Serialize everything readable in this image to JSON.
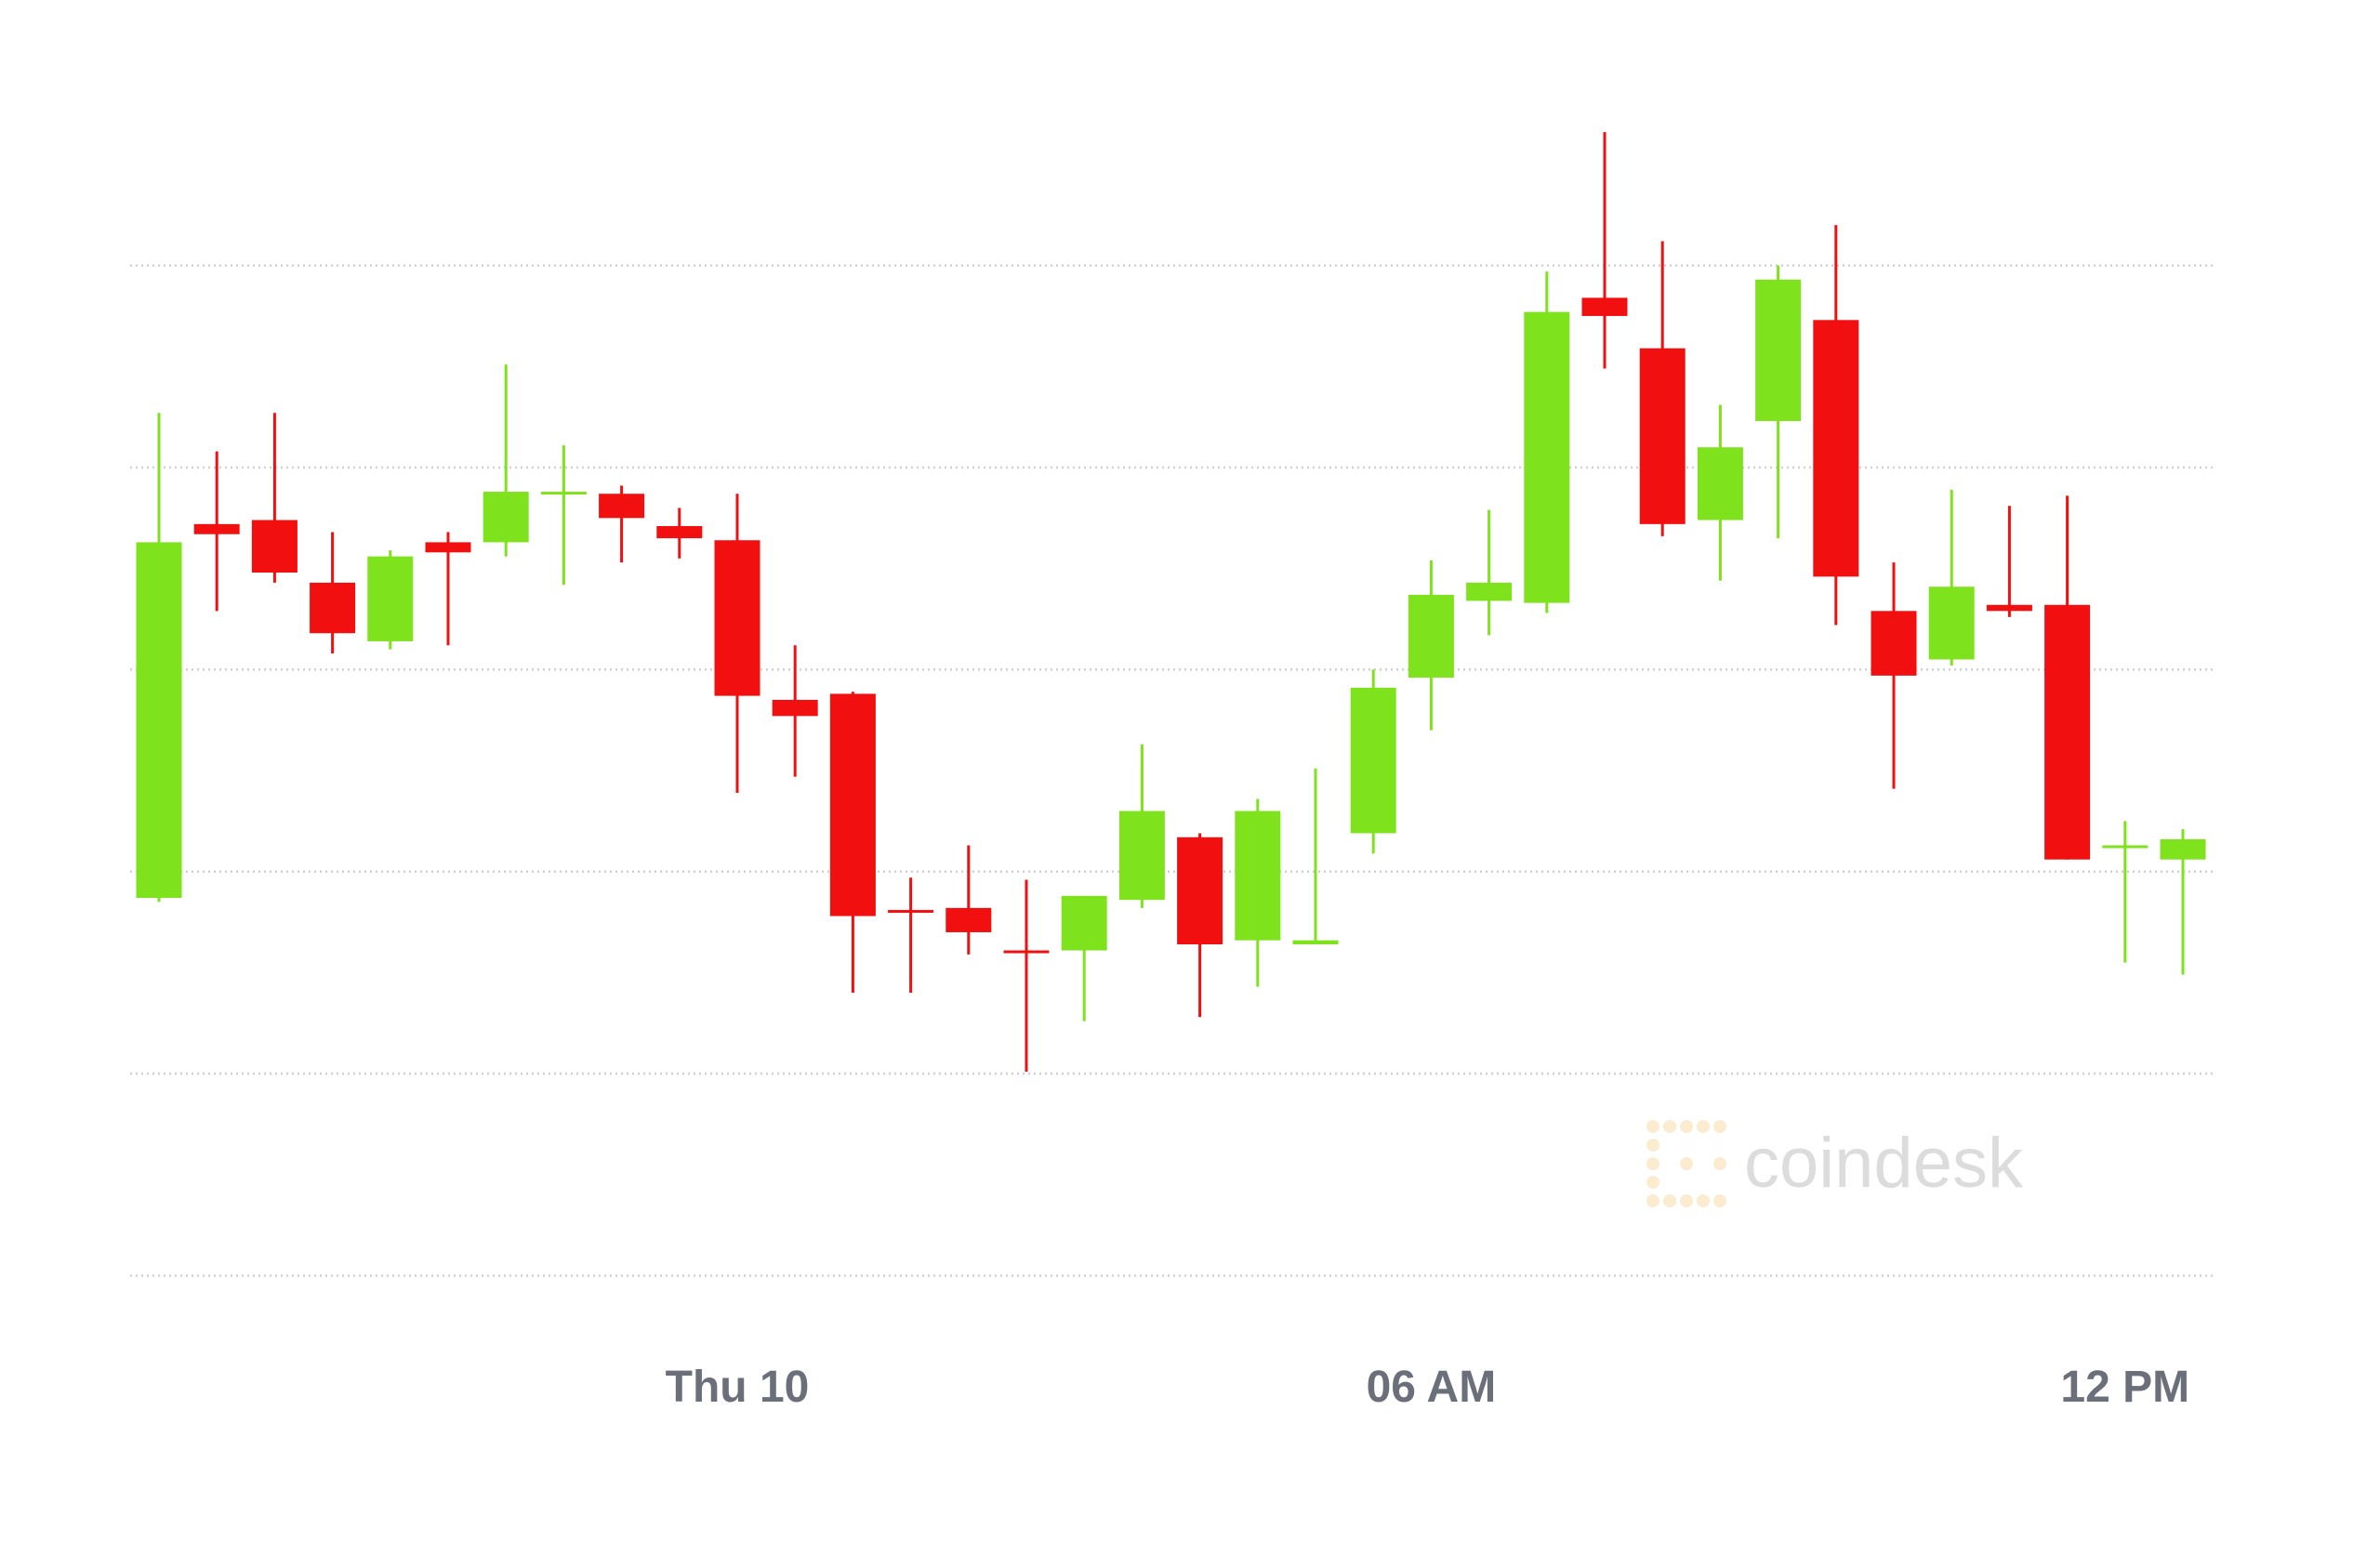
{
  "chart_data": {
    "type": "candlestick",
    "categories": [
      null,
      null,
      null,
      null,
      null,
      null,
      null,
      null,
      null,
      null,
      "Thu 10",
      null,
      null,
      null,
      null,
      null,
      null,
      null,
      null,
      null,
      null,
      null,
      "06 AM",
      null,
      null,
      null,
      null,
      null,
      null,
      null,
      null,
      null,
      null,
      null,
      "12 PM",
      null
    ],
    "open": [
      1.87,
      3.72,
      3.74,
      3.43,
      3.14,
      3.63,
      3.63,
      3.87,
      3.87,
      3.71,
      3.64,
      2.85,
      2.88,
      1.81,
      1.82,
      1.61,
      1.61,
      1.86,
      2.17,
      1.66,
      1.64,
      2.19,
      2.96,
      3.34,
      3.33,
      4.84,
      4.59,
      3.74,
      4.23,
      4.73,
      3.29,
      3.05,
      3.32,
      3.32,
      2.13,
      2.06
    ],
    "high": [
      4.27,
      4.08,
      4.27,
      3.68,
      3.59,
      3.68,
      4.51,
      4.11,
      3.91,
      3.8,
      3.87,
      3.12,
      2.89,
      1.97,
      2.13,
      1.96,
      1.88,
      2.63,
      2.19,
      2.36,
      2.51,
      3.0,
      3.54,
      3.79,
      4.97,
      5.66,
      5.12,
      4.31,
      5.0,
      5.2,
      3.53,
      3.89,
      3.81,
      3.86,
      2.25,
      2.21
    ],
    "low": [
      1.85,
      3.29,
      3.43,
      3.08,
      3.1,
      3.12,
      3.56,
      3.42,
      3.53,
      3.55,
      2.39,
      2.47,
      1.4,
      1.4,
      1.59,
      1.01,
      1.26,
      1.82,
      1.28,
      1.43,
      1.64,
      2.09,
      2.7,
      3.17,
      3.28,
      4.49,
      3.66,
      3.44,
      3.65,
      3.22,
      2.41,
      3.02,
      3.26,
      2.06,
      1.55,
      1.49
    ],
    "close": [
      3.63,
      3.67,
      3.48,
      3.18,
      3.56,
      3.58,
      3.88,
      3.88,
      3.75,
      3.65,
      2.87,
      2.77,
      1.78,
      1.8,
      1.7,
      1.6,
      1.88,
      2.3,
      1.64,
      2.3,
      1.66,
      2.91,
      3.37,
      3.43,
      4.77,
      4.75,
      3.72,
      4.1,
      4.93,
      3.46,
      2.97,
      3.41,
      3.29,
      2.06,
      2.13,
      2.16
    ],
    "up_color": "#7ee31c",
    "down_color": "#f20f0f",
    "ylim": [
      -0.2,
      6.3
    ],
    "yticks": [
      0,
      1,
      2,
      3,
      4,
      5
    ],
    "grid": true,
    "watermark": "coindesk"
  }
}
